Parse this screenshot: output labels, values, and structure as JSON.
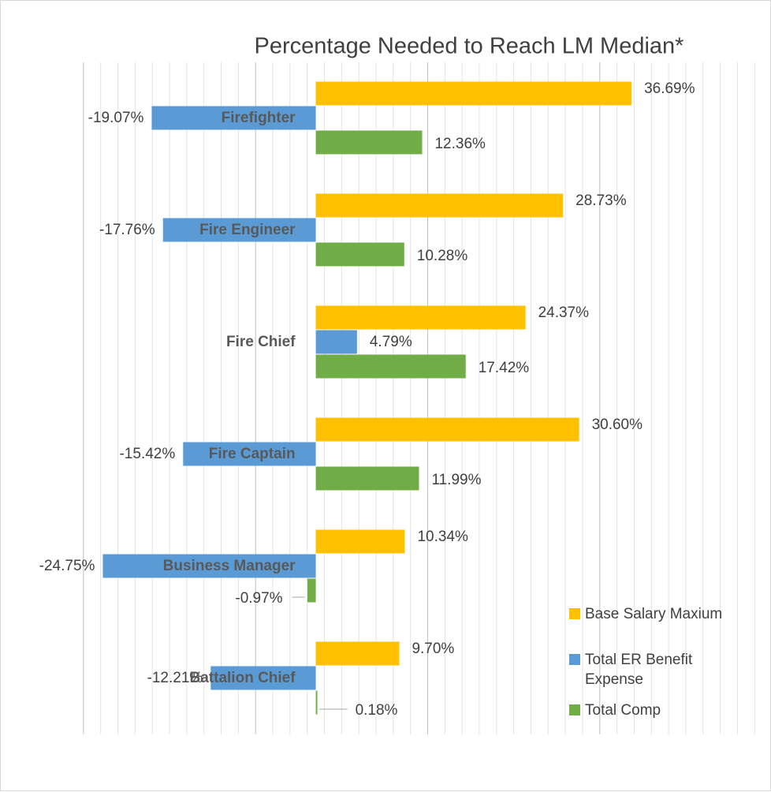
{
  "chart_data": {
    "type": "bar",
    "orientation": "horizontal",
    "title": "Percentage Needed to Reach LM Median*",
    "categories": [
      "Firefighter",
      "Fire Engineer",
      "Fire Chief",
      "Fire Captain",
      "Business Manager",
      "Battalion Chief"
    ],
    "series": [
      {
        "name": "Base Salary Maxium",
        "color": "#ffc000",
        "values": [
          36.69,
          28.73,
          24.37,
          30.6,
          10.34,
          9.7
        ],
        "value_labels": [
          "36.69%",
          "28.73%",
          "24.37%",
          "30.60%",
          "10.34%",
          "9.70%"
        ]
      },
      {
        "name": "Total ER Benefit Expense",
        "color": "#5b9bd5",
        "values": [
          -19.07,
          -17.76,
          4.79,
          -15.42,
          -24.75,
          -12.21
        ],
        "value_labels": [
          "-19.07%",
          "-17.76%",
          "4.79%",
          "-15.42%",
          "-24.75%",
          "-12.21%"
        ]
      },
      {
        "name": "Total Comp",
        "color": "#70ad47",
        "values": [
          12.36,
          10.28,
          17.42,
          11.99,
          -0.97,
          0.18
        ],
        "value_labels": [
          "12.36%",
          "10.28%",
          "17.42%",
          "11.99%",
          "-0.97%",
          "0.18%"
        ]
      }
    ],
    "xlim": [
      -36.7,
      52.9
    ],
    "xticks": [
      -27,
      -25,
      -23,
      -21,
      -19,
      -17,
      -15,
      -13,
      -11,
      -9,
      -7,
      -5,
      -3,
      -1,
      1,
      3,
      5,
      7,
      9,
      11,
      13,
      15,
      17,
      19,
      21,
      23,
      25,
      27,
      29,
      31,
      33,
      35,
      37,
      39,
      41,
      43,
      45,
      47,
      49,
      51
    ],
    "grid": true,
    "legend": "lower right"
  }
}
